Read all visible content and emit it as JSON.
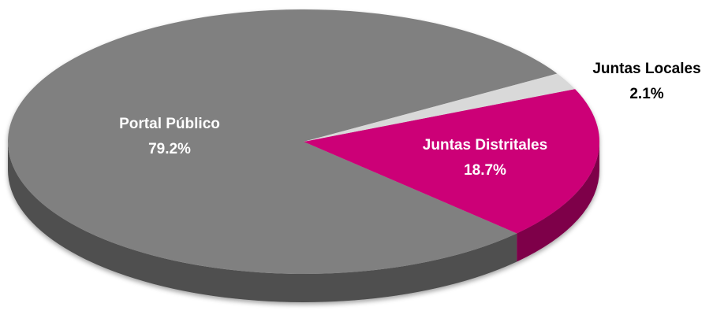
{
  "chart_data": {
    "type": "pie3d",
    "categories": [
      "Portal Público",
      "Juntas Distritales",
      "Juntas Locales"
    ],
    "values": [
      79.2,
      18.7,
      2.1
    ],
    "value_labels": [
      "79.2%",
      "18.7%",
      "2.1%"
    ],
    "colors": [
      "#808080",
      "#cc0077",
      "#d9d9d9"
    ]
  }
}
